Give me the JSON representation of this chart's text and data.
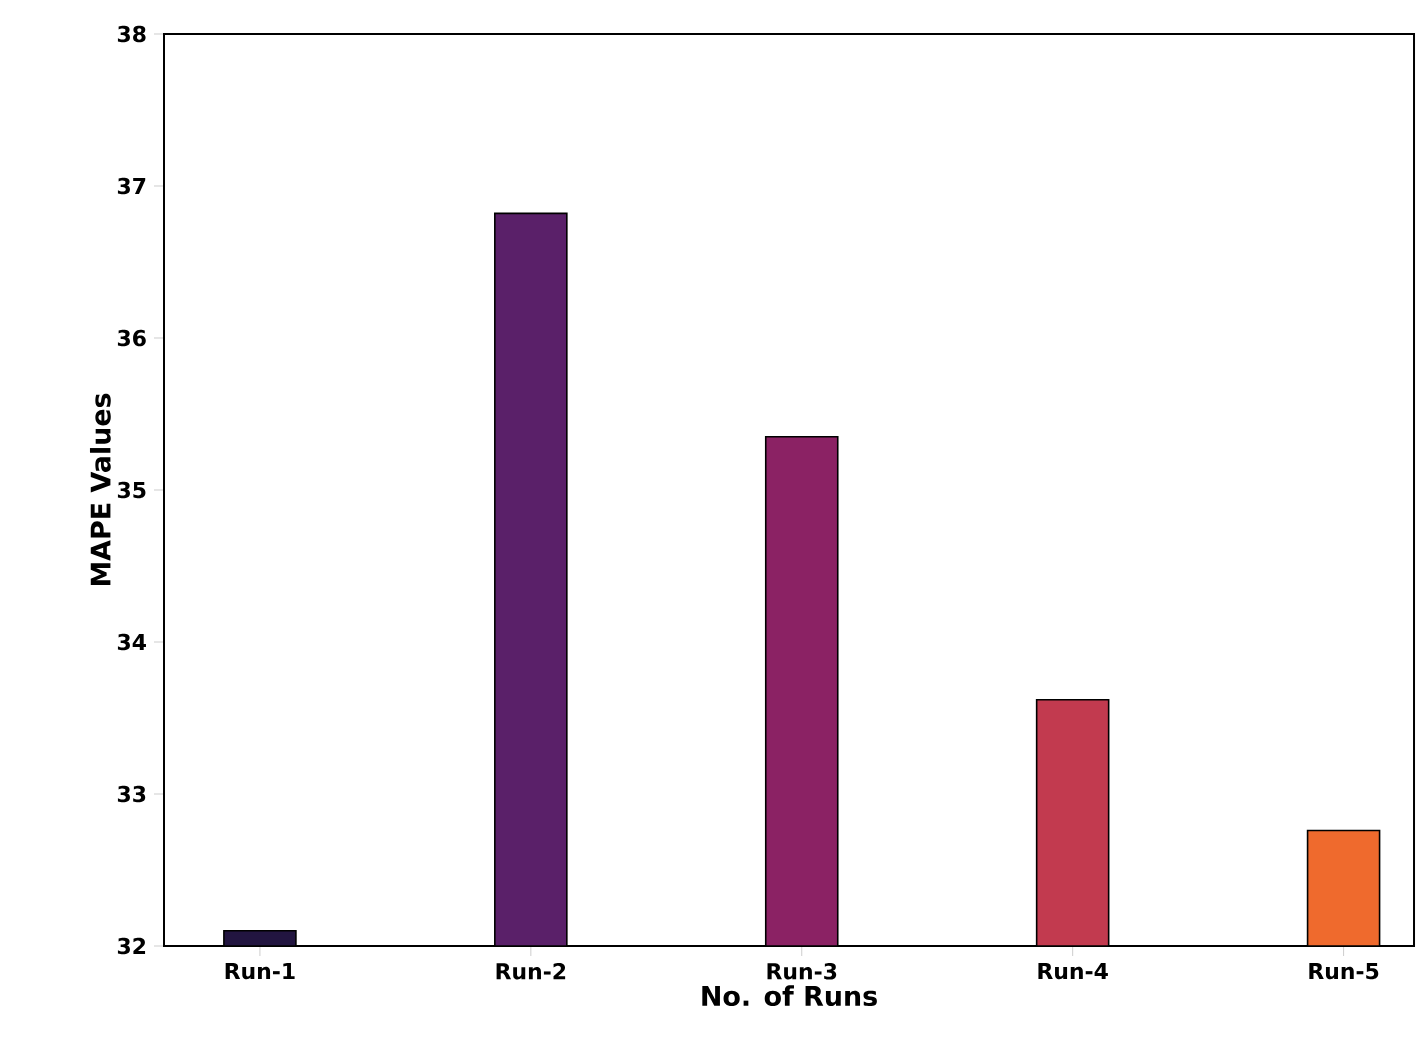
{
  "chart_data": {
    "type": "bar",
    "xlabel": "No. of Runs",
    "ylabel": "MAPE Values",
    "categories": [
      "Run-1",
      "Run-2",
      "Run-3",
      "Run-4",
      "Run-5"
    ],
    "values": [
      32.1,
      36.82,
      35.35,
      33.62,
      32.76
    ],
    "colors": [
      "#221540",
      "#5a2069",
      "#8b2264",
      "#c23a4f",
      "#ef6a2d"
    ],
    "ylim": [
      32,
      38
    ],
    "yticks": [
      32,
      33,
      34,
      35,
      36,
      37,
      38
    ]
  }
}
